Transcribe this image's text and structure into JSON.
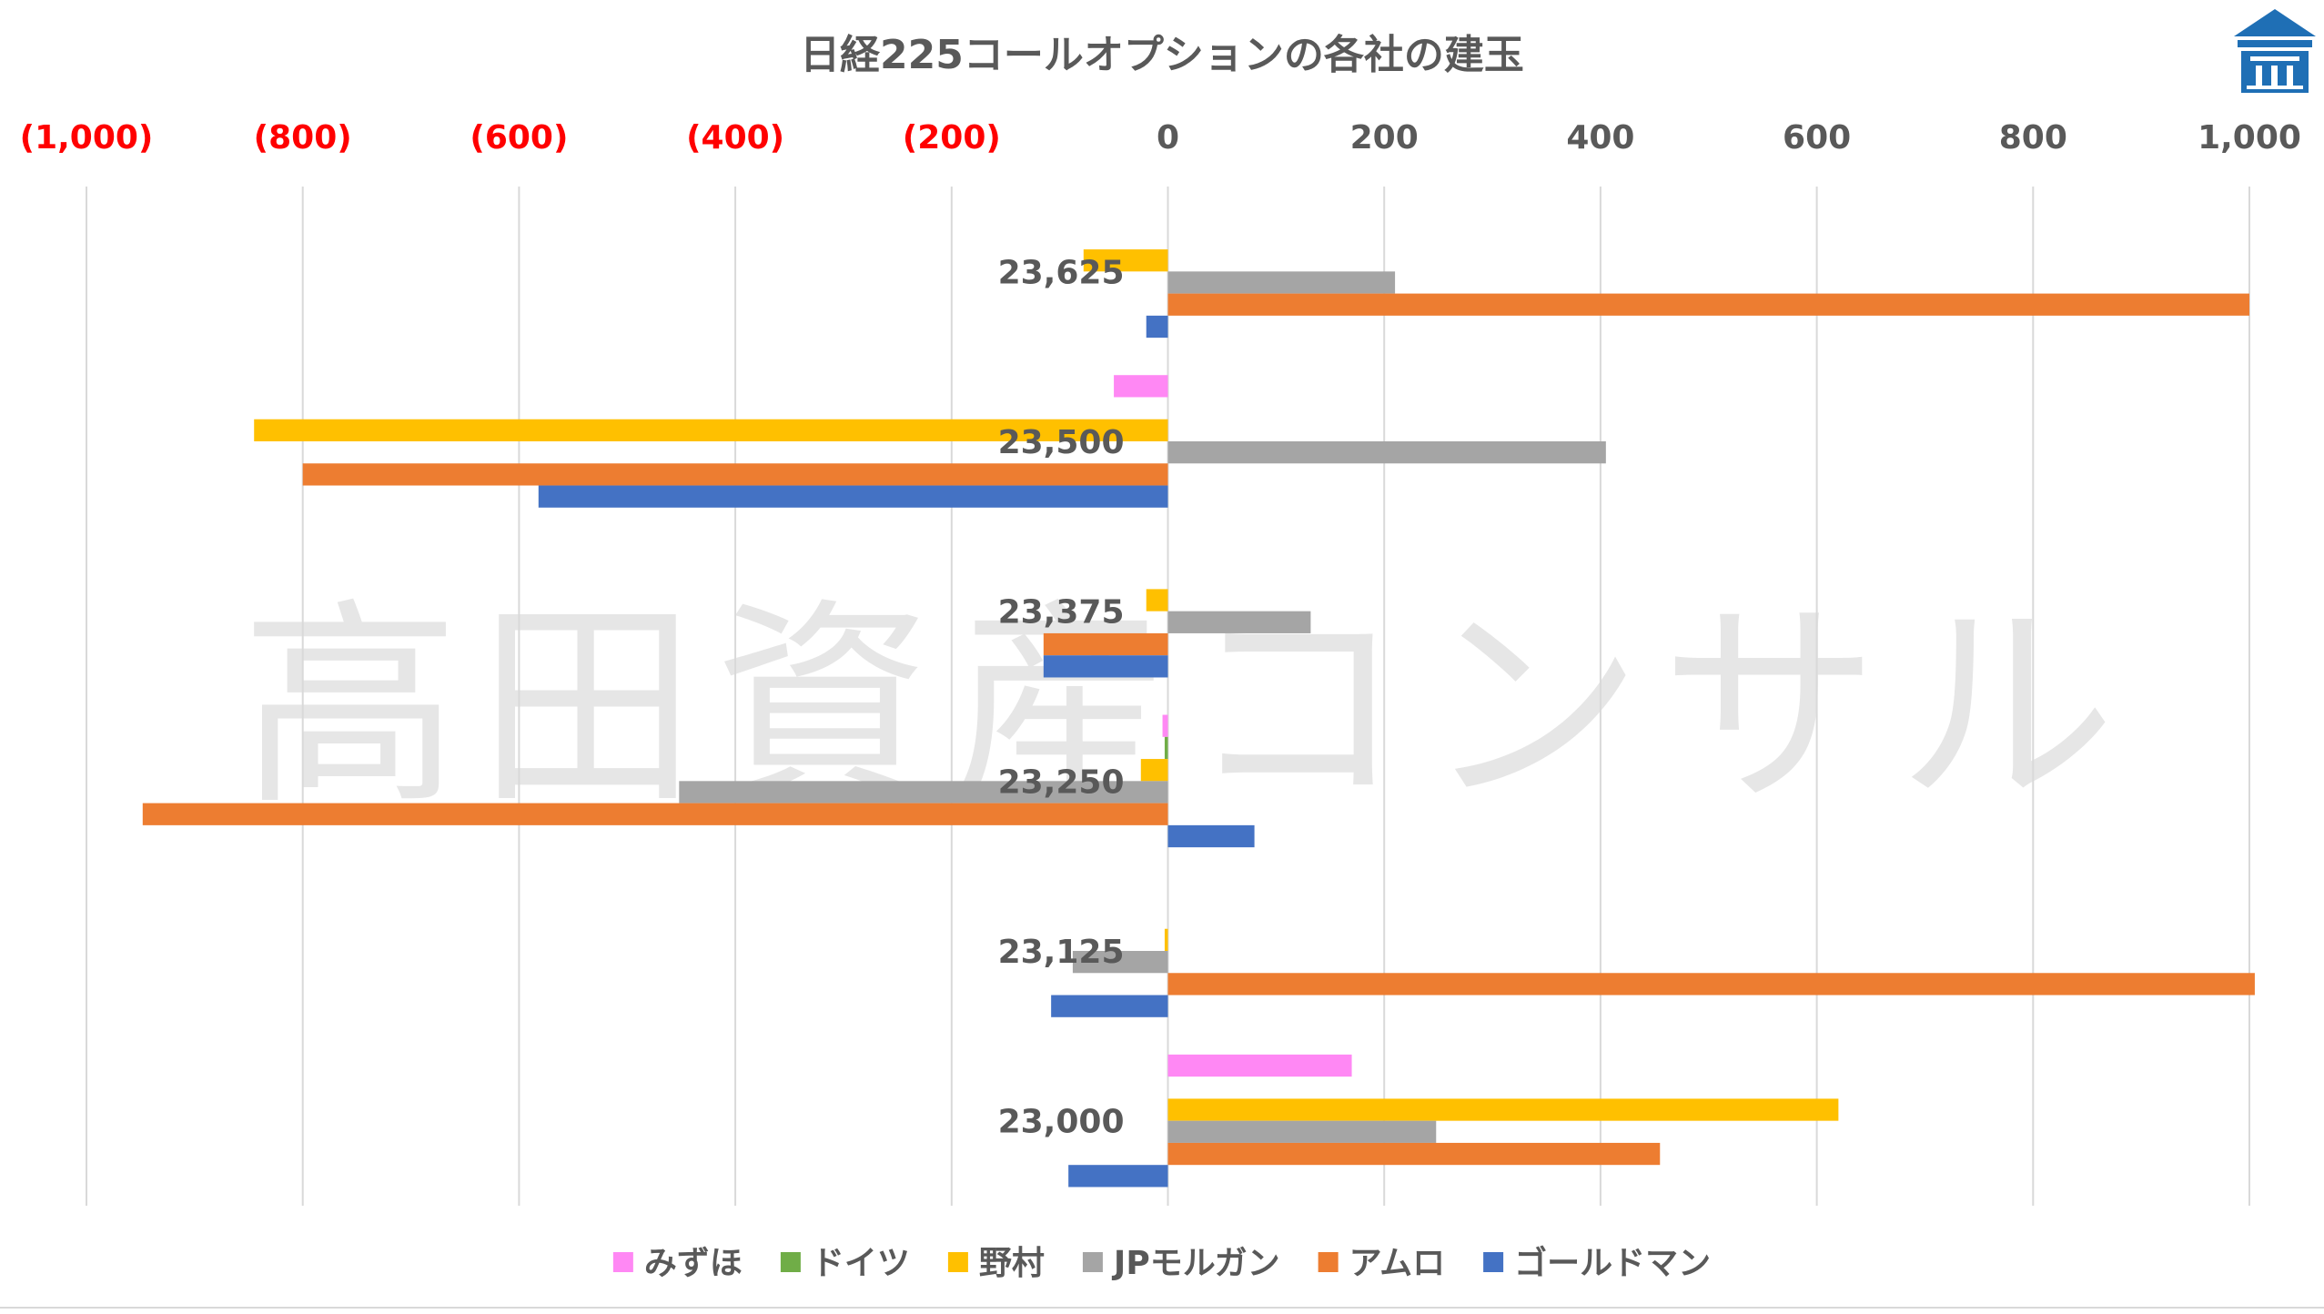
{
  "chart_data": {
    "type": "bar",
    "orientation": "horizontal",
    "title": "日経225コールオプションの各社の建玉",
    "watermark": "高田資産コンサル",
    "categories": [
      "23,625",
      "23,500",
      "23,375",
      "23,250",
      "23,125",
      "23,000"
    ],
    "xlim": [
      -1000,
      1000
    ],
    "xticks": [
      {
        "value": -1000,
        "label": "(1,000)",
        "negative": true
      },
      {
        "value": -800,
        "label": "(800)",
        "negative": true
      },
      {
        "value": -600,
        "label": "(600)",
        "negative": true
      },
      {
        "value": -400,
        "label": "(400)",
        "negative": true
      },
      {
        "value": -200,
        "label": "(200)",
        "negative": true
      },
      {
        "value": 0,
        "label": "0",
        "negative": false
      },
      {
        "value": 200,
        "label": "200",
        "negative": false
      },
      {
        "value": 400,
        "label": "400",
        "negative": false
      },
      {
        "value": 600,
        "label": "600",
        "negative": false
      },
      {
        "value": 800,
        "label": "800",
        "negative": false
      },
      {
        "value": 1000,
        "label": "1,000",
        "negative": false
      }
    ],
    "grid": true,
    "legend_position": "bottom",
    "colors": {
      "negative_tick": "#ff0000",
      "tick": "#595959",
      "grid": "#d9d9d9",
      "title": "#595959",
      "watermark": "#e6e6e6",
      "logo": "#1f6fb5"
    },
    "series": [
      {
        "name": "みずほ",
        "color": "#ff88f4",
        "values": [
          0,
          -50,
          0,
          -5,
          0,
          170
        ]
      },
      {
        "name": "ドイツ",
        "color": "#70ad47",
        "values": [
          0,
          0,
          0,
          -3,
          0,
          0
        ]
      },
      {
        "name": "野村",
        "color": "#ffc000",
        "values": [
          -78,
          -845,
          -20,
          -25,
          -3,
          620
        ]
      },
      {
        "name": "JPモルガン",
        "color": "#a5a5a5",
        "values": [
          210,
          405,
          132,
          -452,
          -88,
          248
        ]
      },
      {
        "name": "アムロ",
        "color": "#ed7d31",
        "values": [
          1000,
          -800,
          -115,
          -948,
          1005,
          455
        ]
      },
      {
        "name": "ゴールドマン",
        "color": "#4472c4",
        "values": [
          -20,
          -582,
          -115,
          80,
          -108,
          -92
        ]
      }
    ]
  }
}
